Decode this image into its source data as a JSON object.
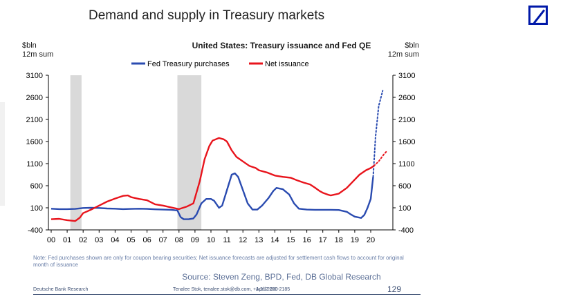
{
  "slide": {
    "title": "Demand and supply in Treasury markets",
    "note": "Note: Fed purchases shown are only for coupon bearing securities; Net issuance forecasts are adjusted for settlement cash flows to account for original month of issuance",
    "source": "Source: Steven Zeng, BPD, Fed, DB Global  Research",
    "footer_left": "Deutsche Bank Research",
    "footer_mid": "Tenalee Stok, tenalee.stok@db.com, +1 212 250-2185",
    "footer_date": "April 2020",
    "page_number": "129"
  },
  "colors": {
    "fed": "#2a4bb0",
    "net": "#e8141c",
    "recession": "#d9d9d9",
    "logo": "#0018a8"
  },
  "chart_data": {
    "type": "line",
    "title": "United States: Treasury issuance and Fed QE",
    "ylabel_left": "$bln\n12m sum",
    "ylabel_right": "$bln\n12m sum",
    "ylim": [
      -400,
      3100
    ],
    "yticks": [
      3100,
      2600,
      2100,
      1600,
      1100,
      600,
      100,
      -400
    ],
    "xlim": [
      2000,
      2021
    ],
    "xtick_labels": [
      "00",
      "01",
      "02",
      "03",
      "04",
      "05",
      "06",
      "07",
      "08",
      "09",
      "10",
      "11",
      "12",
      "13",
      "14",
      "15",
      "16",
      "17",
      "18",
      "19",
      "20"
    ],
    "recessions": [
      [
        2001.2,
        2001.9
      ],
      [
        2007.9,
        2009.4
      ]
    ],
    "legend": [
      "Fed Treasury purchases",
      "Net issuance"
    ],
    "series": [
      {
        "name": "Fed Treasury purchases",
        "color": "#2a4bb0",
        "points": [
          [
            2000.0,
            80
          ],
          [
            2000.5,
            70
          ],
          [
            2001.0,
            70
          ],
          [
            2001.5,
            75
          ],
          [
            2002.0,
            95
          ],
          [
            2002.5,
            100
          ],
          [
            2003.0,
            95
          ],
          [
            2003.5,
            85
          ],
          [
            2004.0,
            80
          ],
          [
            2004.5,
            70
          ],
          [
            2005.0,
            75
          ],
          [
            2005.5,
            80
          ],
          [
            2006.0,
            75
          ],
          [
            2006.5,
            65
          ],
          [
            2007.0,
            60
          ],
          [
            2007.5,
            55
          ],
          [
            2007.9,
            40
          ],
          [
            2008.1,
            -110
          ],
          [
            2008.3,
            -160
          ],
          [
            2008.6,
            -160
          ],
          [
            2008.9,
            -140
          ],
          [
            2009.1,
            -50
          ],
          [
            2009.4,
            200
          ],
          [
            2009.7,
            300
          ],
          [
            2010.0,
            300
          ],
          [
            2010.2,
            260
          ],
          [
            2010.5,
            100
          ],
          [
            2010.7,
            150
          ],
          [
            2011.0,
            500
          ],
          [
            2011.3,
            850
          ],
          [
            2011.5,
            880
          ],
          [
            2011.7,
            800
          ],
          [
            2012.0,
            500
          ],
          [
            2012.3,
            200
          ],
          [
            2012.6,
            60
          ],
          [
            2012.9,
            60
          ],
          [
            2013.2,
            150
          ],
          [
            2013.6,
            320
          ],
          [
            2013.9,
            480
          ],
          [
            2014.1,
            550
          ],
          [
            2014.5,
            520
          ],
          [
            2014.9,
            400
          ],
          [
            2015.2,
            200
          ],
          [
            2015.5,
            80
          ],
          [
            2016.0,
            60
          ],
          [
            2016.5,
            55
          ],
          [
            2017.0,
            55
          ],
          [
            2017.5,
            55
          ],
          [
            2018.0,
            50
          ],
          [
            2018.5,
            10
          ],
          [
            2018.8,
            -60
          ],
          [
            2019.0,
            -100
          ],
          [
            2019.4,
            -130
          ],
          [
            2019.6,
            -60
          ],
          [
            2019.8,
            100
          ],
          [
            2020.0,
            300
          ],
          [
            2020.15,
            800
          ]
        ]
      },
      {
        "name": "Fed Treasury purchases (projection)",
        "color": "#2a4bb0",
        "dotted": true,
        "points": [
          [
            2020.15,
            800
          ],
          [
            2020.3,
            1700
          ],
          [
            2020.5,
            2400
          ],
          [
            2020.75,
            2750
          ]
        ]
      },
      {
        "name": "Net issuance",
        "color": "#e8141c",
        "points": [
          [
            2000.0,
            -160
          ],
          [
            2000.5,
            -150
          ],
          [
            2001.0,
            -180
          ],
          [
            2001.5,
            -200
          ],
          [
            2001.8,
            -120
          ],
          [
            2002.0,
            -20
          ],
          [
            2002.5,
            60
          ],
          [
            2003.0,
            150
          ],
          [
            2003.5,
            240
          ],
          [
            2004.0,
            310
          ],
          [
            2004.5,
            370
          ],
          [
            2004.8,
            380
          ],
          [
            2005.0,
            340
          ],
          [
            2005.5,
            300
          ],
          [
            2006.0,
            270
          ],
          [
            2006.5,
            180
          ],
          [
            2007.0,
            150
          ],
          [
            2007.5,
            110
          ],
          [
            2008.0,
            70
          ],
          [
            2008.5,
            130
          ],
          [
            2008.9,
            200
          ],
          [
            2009.3,
            700
          ],
          [
            2009.6,
            1200
          ],
          [
            2009.9,
            1500
          ],
          [
            2010.1,
            1620
          ],
          [
            2010.5,
            1680
          ],
          [
            2010.8,
            1650
          ],
          [
            2011.0,
            1600
          ],
          [
            2011.3,
            1400
          ],
          [
            2011.6,
            1250
          ],
          [
            2012.0,
            1150
          ],
          [
            2012.4,
            1050
          ],
          [
            2012.8,
            1000
          ],
          [
            2013.0,
            950
          ],
          [
            2013.5,
            900
          ],
          [
            2014.0,
            830
          ],
          [
            2014.5,
            800
          ],
          [
            2015.0,
            780
          ],
          [
            2015.4,
            720
          ],
          [
            2015.8,
            670
          ],
          [
            2016.2,
            630
          ],
          [
            2016.5,
            560
          ],
          [
            2016.8,
            480
          ],
          [
            2017.0,
            440
          ],
          [
            2017.3,
            400
          ],
          [
            2017.5,
            380
          ],
          [
            2018.0,
            420
          ],
          [
            2018.5,
            550
          ],
          [
            2018.9,
            700
          ],
          [
            2019.3,
            850
          ],
          [
            2019.7,
            950
          ],
          [
            2020.0,
            1000
          ],
          [
            2020.2,
            1050
          ]
        ]
      },
      {
        "name": "Net issuance (projection)",
        "color": "#e8141c",
        "dotted": true,
        "points": [
          [
            2020.2,
            1050
          ],
          [
            2020.5,
            1150
          ],
          [
            2020.8,
            1300
          ],
          [
            2021.0,
            1380
          ]
        ]
      }
    ]
  }
}
